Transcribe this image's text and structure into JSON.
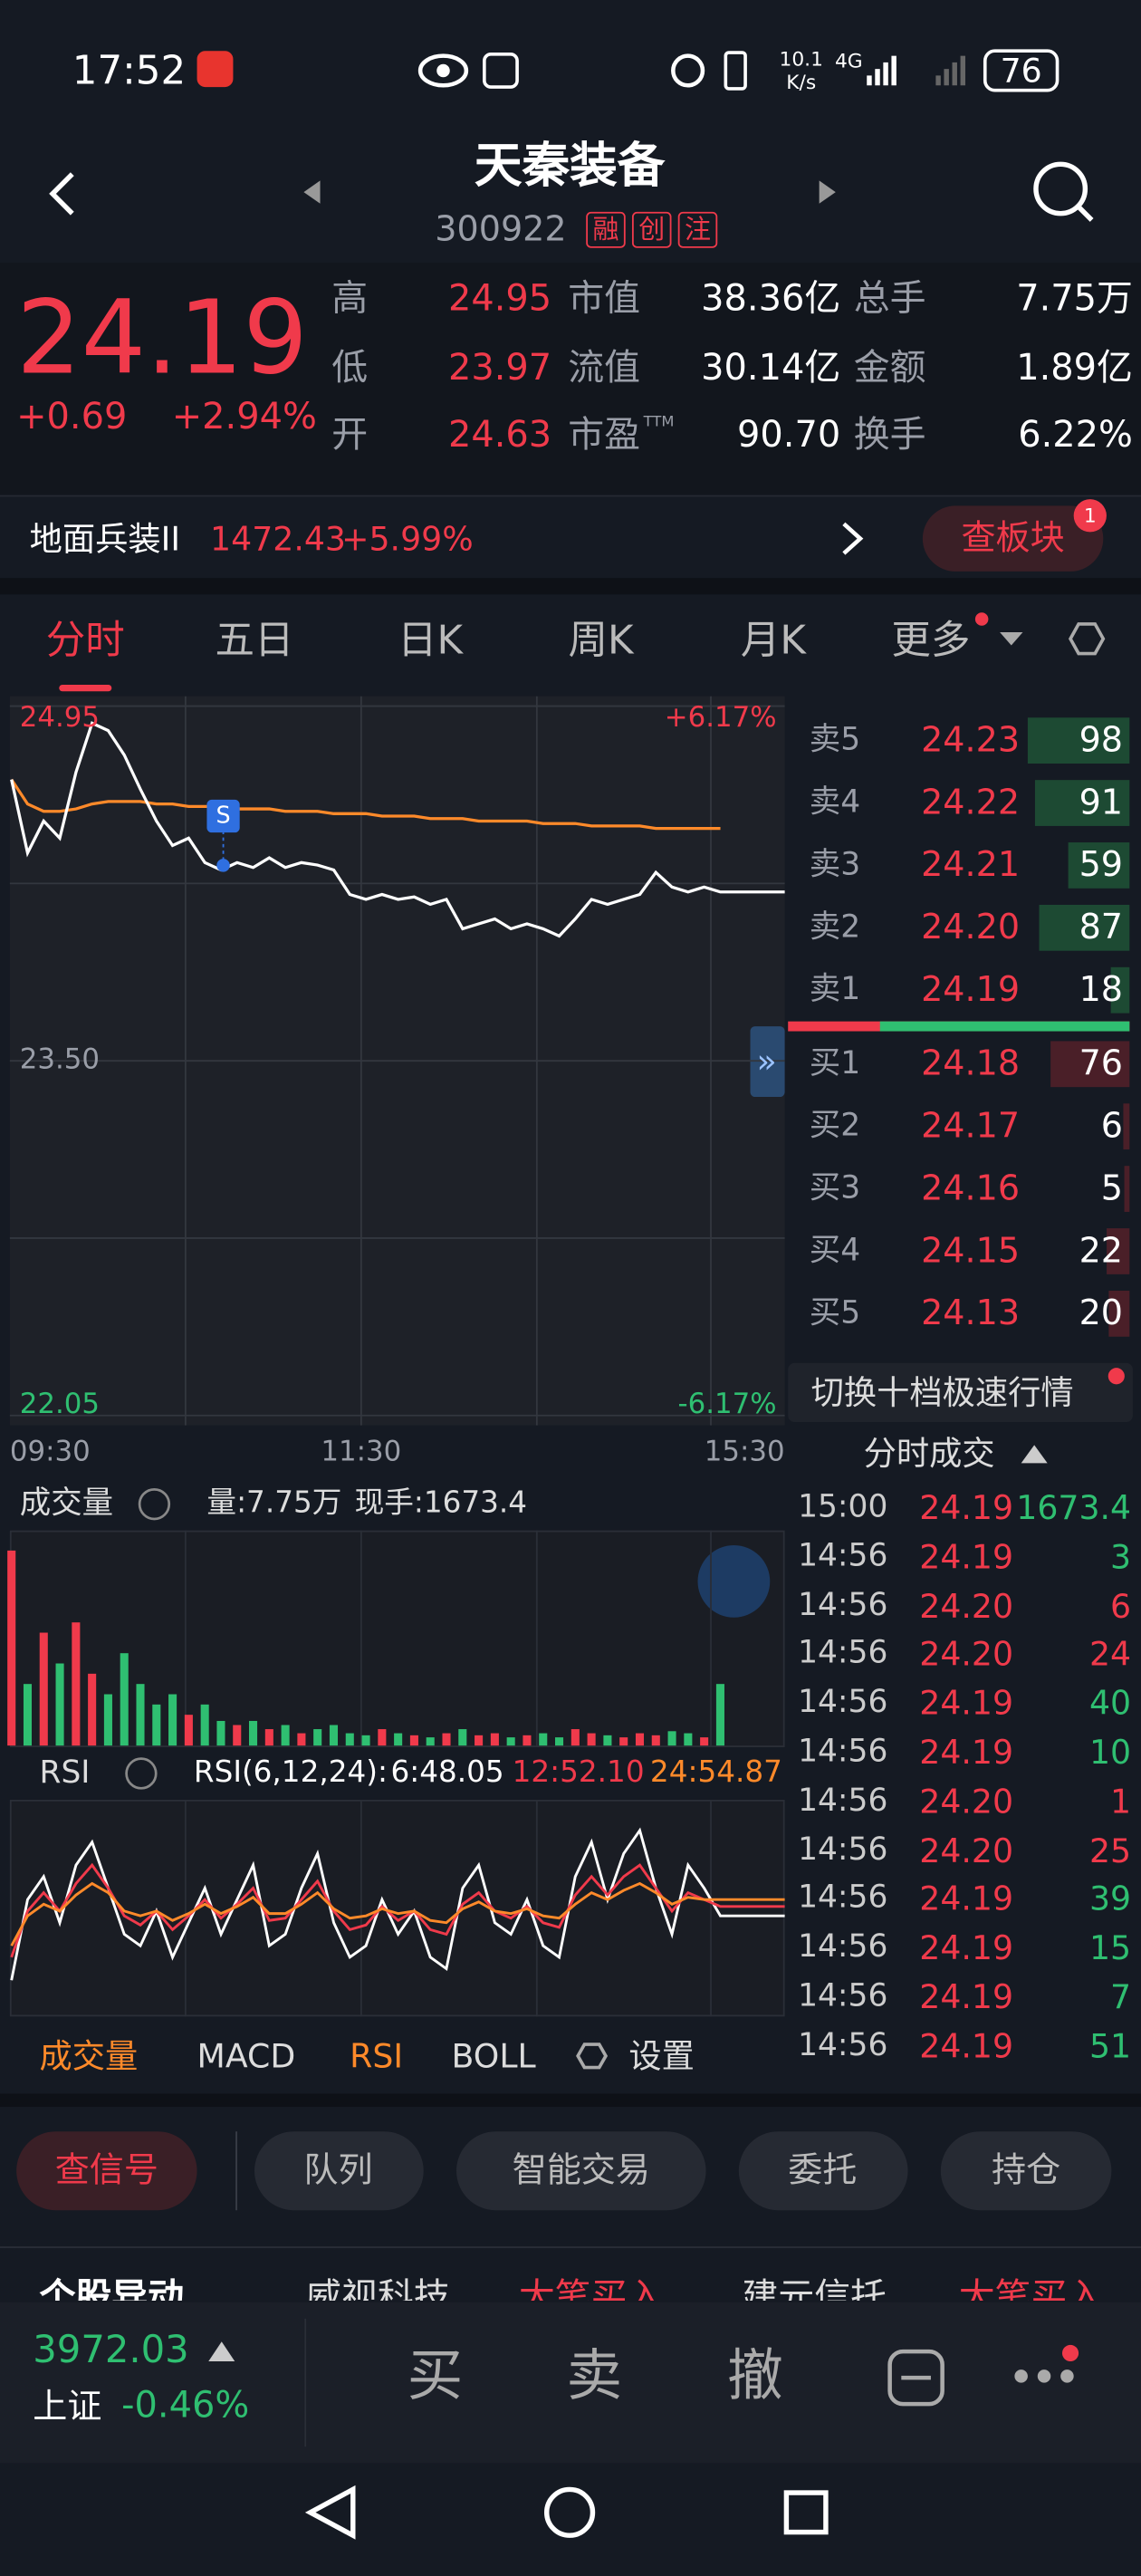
{
  "status_bar": {
    "time": "17:52",
    "net_speed": "10.1",
    "net_unit": "K/s",
    "signal": "4G",
    "battery": "76"
  },
  "header": {
    "name": "天秦装备",
    "code": "300922",
    "tags": [
      "融",
      "创",
      "注"
    ]
  },
  "quote": {
    "price": "24.19",
    "change": "+0.69",
    "change_pct": "+2.94%",
    "rows": [
      [
        {
          "label": "高",
          "value": "24.95"
        },
        {
          "label": "市值",
          "value": "38.36亿"
        },
        {
          "label": "总手",
          "value": "7.75万"
        }
      ],
      [
        {
          "label": "低",
          "value": "23.97"
        },
        {
          "label": "流值",
          "value": "30.14亿"
        },
        {
          "label": "金额",
          "value": "1.89亿"
        }
      ],
      [
        {
          "label": "开",
          "value": "24.63"
        },
        {
          "label": "市盈",
          "sup": "TTM",
          "value": "90.70"
        },
        {
          "label": "换手",
          "value": "6.22%"
        }
      ]
    ]
  },
  "sector": {
    "name": "地面兵装II",
    "price": "1472.43",
    "change": "+5.99%",
    "button": "查板块",
    "badge": "1"
  },
  "tabs": [
    "分时",
    "五日",
    "日K",
    "周K",
    "月K",
    "更多"
  ],
  "intraday": {
    "type": "line",
    "ylim": [
      22.05,
      24.95
    ],
    "yticks": [
      {
        "value": 24.95,
        "label": "24.95"
      },
      {
        "value": 23.5,
        "label": "23.50"
      },
      {
        "value": 22.05,
        "label": "22.05"
      }
    ],
    "pct_labels": [
      "+6.17%",
      "-6.17%"
    ],
    "xticks": [
      "09:30",
      "11:30",
      "15:30"
    ],
    "signal": "S",
    "series": [
      {
        "color": "#ffffff",
        "values": [
          24.65,
          24.35,
          24.48,
          24.41,
          24.68,
          24.88,
          24.85,
          24.75,
          24.61,
          24.48,
          24.38,
          24.41,
          24.31,
          24.28,
          24.31,
          24.29,
          24.33,
          24.29,
          24.31,
          24.3,
          24.28,
          24.18,
          24.16,
          24.18,
          24.16,
          24.17,
          24.14,
          24.16,
          24.04,
          24.06,
          24.08,
          24.04,
          24.06,
          24.04,
          24.01,
          24.08,
          24.16,
          24.14,
          24.16,
          24.18,
          24.27,
          24.21,
          24.19,
          24.21,
          24.19,
          24.19,
          24.19,
          24.19,
          24.19
        ]
      },
      {
        "color": "#ff8a2a",
        "values": [
          24.65,
          24.55,
          24.52,
          24.52,
          24.53,
          24.55,
          24.56,
          24.56,
          24.56,
          24.55,
          24.55,
          24.54,
          24.54,
          24.54,
          24.53,
          24.53,
          24.53,
          24.52,
          24.52,
          24.52,
          24.51,
          24.51,
          24.51,
          24.5,
          24.5,
          24.5,
          24.49,
          24.49,
          24.49,
          24.48,
          24.48,
          24.48,
          24.48,
          24.47,
          24.47,
          24.47,
          24.46,
          24.46,
          24.46,
          24.46,
          24.45,
          24.45,
          24.45,
          24.45,
          24.45,
          null,
          null,
          null,
          null
        ]
      }
    ]
  },
  "order_book": {
    "sells": [
      {
        "label": "卖5",
        "price": "24.23",
        "volume": 98
      },
      {
        "label": "卖4",
        "price": "24.22",
        "volume": 91
      },
      {
        "label": "卖3",
        "price": "24.21",
        "volume": 59
      },
      {
        "label": "卖2",
        "price": "24.20",
        "volume": 87
      },
      {
        "label": "卖1",
        "price": "24.19",
        "volume": 18
      }
    ],
    "buys": [
      {
        "label": "买1",
        "price": "24.18",
        "volume": 76
      },
      {
        "label": "买2",
        "price": "24.17",
        "volume": 6
      },
      {
        "label": "买3",
        "price": "24.16",
        "volume": 5
      },
      {
        "label": "买4",
        "price": "24.15",
        "volume": 22
      },
      {
        "label": "买5",
        "price": "24.13",
        "volume": 20
      }
    ],
    "switch": "切换十档极速行情"
  },
  "trades": {
    "title": "分时成交",
    "rows": [
      {
        "time": "15:00",
        "price": "24.19",
        "volume": "1673.4",
        "color": "#2fbf71"
      },
      {
        "time": "14:56",
        "price": "24.19",
        "volume": "3",
        "color": "#2fbf71"
      },
      {
        "time": "14:56",
        "price": "24.20",
        "volume": "6",
        "color": "#f03a4b"
      },
      {
        "time": "14:56",
        "price": "24.20",
        "volume": "24",
        "color": "#f03a4b"
      },
      {
        "time": "14:56",
        "price": "24.19",
        "volume": "40",
        "color": "#2fbf71"
      },
      {
        "time": "14:56",
        "price": "24.19",
        "volume": "10",
        "color": "#2fbf71"
      },
      {
        "time": "14:56",
        "price": "24.20",
        "volume": "1",
        "color": "#f03a4b"
      },
      {
        "time": "14:56",
        "price": "24.20",
        "volume": "25",
        "color": "#f03a4b"
      },
      {
        "time": "14:56",
        "price": "24.19",
        "volume": "39",
        "color": "#2fbf71"
      },
      {
        "time": "14:56",
        "price": "24.19",
        "volume": "15",
        "color": "#2fbf71"
      },
      {
        "time": "14:56",
        "price": "24.19",
        "volume": "7",
        "color": "#2fbf71"
      },
      {
        "time": "14:56",
        "price": "24.19",
        "volume": "51",
        "color": "#2fbf71"
      }
    ]
  },
  "volume_panel": {
    "title": "成交量",
    "total": "量:7.75万",
    "last": "现手:1673.4",
    "ylim": [
      0,
      100
    ],
    "values": [
      95,
      30,
      55,
      40,
      60,
      35,
      25,
      45,
      30,
      20,
      25,
      15,
      20,
      12,
      10,
      12,
      8,
      10,
      6,
      8,
      10,
      6,
      5,
      8,
      6,
      5,
      4,
      6,
      8,
      5,
      6,
      4,
      5,
      6,
      4,
      8,
      6,
      5,
      4,
      6,
      5,
      7,
      6,
      4,
      30,
      0,
      0,
      0,
      0
    ]
  },
  "rsi_panel": {
    "title": "RSI",
    "params": "RSI(6,12,24):",
    "readings": [
      {
        "text": "6:48.05",
        "color": "#ffffff"
      },
      {
        "text": "12:52.10",
        "color": "#f03a4b"
      },
      {
        "text": "24:54.87",
        "color": "#ff8a2a"
      }
    ],
    "ylim": [
      0,
      100
    ],
    "series": [
      {
        "color": "#ffffff",
        "values": [
          20,
          55,
          65,
          45,
          70,
          80,
          60,
          40,
          35,
          50,
          30,
          45,
          60,
          40,
          55,
          70,
          35,
          40,
          60,
          75,
          45,
          30,
          35,
          55,
          40,
          50,
          30,
          25,
          60,
          70,
          45,
          40,
          55,
          35,
          30,
          65,
          80,
          55,
          75,
          85,
          60,
          40,
          70,
          60,
          48,
          48,
          48,
          48,
          48
        ]
      },
      {
        "color": "#f03a4b",
        "values": [
          30,
          50,
          58,
          50,
          62,
          70,
          60,
          48,
          44,
          50,
          42,
          48,
          55,
          47,
          53,
          60,
          46,
          47,
          55,
          63,
          50,
          42,
          44,
          52,
          46,
          50,
          42,
          40,
          53,
          58,
          50,
          47,
          52,
          45,
          43,
          57,
          65,
          57,
          65,
          70,
          60,
          50,
          58,
          55,
          52,
          52,
          52,
          52,
          52
        ]
      },
      {
        "color": "#ff8a2a",
        "values": [
          35,
          48,
          53,
          50,
          57,
          62,
          58,
          50,
          48,
          50,
          46,
          49,
          53,
          49,
          52,
          56,
          49,
          49,
          53,
          58,
          51,
          47,
          48,
          51,
          49,
          50,
          46,
          45,
          51,
          54,
          50,
          49,
          51,
          48,
          47,
          53,
          58,
          55,
          59,
          62,
          58,
          53,
          56,
          55,
          55,
          55,
          55,
          55,
          55
        ]
      }
    ]
  },
  "indicator_tabs": [
    "成交量",
    "MACD",
    "RSI",
    "BOLL",
    "设置"
  ],
  "actions": [
    "查信号",
    "队列",
    "智能交易",
    "委托",
    "持仓"
  ],
  "ticker": [
    "个股异动",
    "威视科技",
    "大笔买入",
    "建元信托",
    "大笔买入"
  ],
  "index": {
    "value": "3972.03",
    "name": "上证",
    "change": "-0.46%"
  },
  "trade_buttons": [
    "买",
    "卖",
    "撤"
  ]
}
